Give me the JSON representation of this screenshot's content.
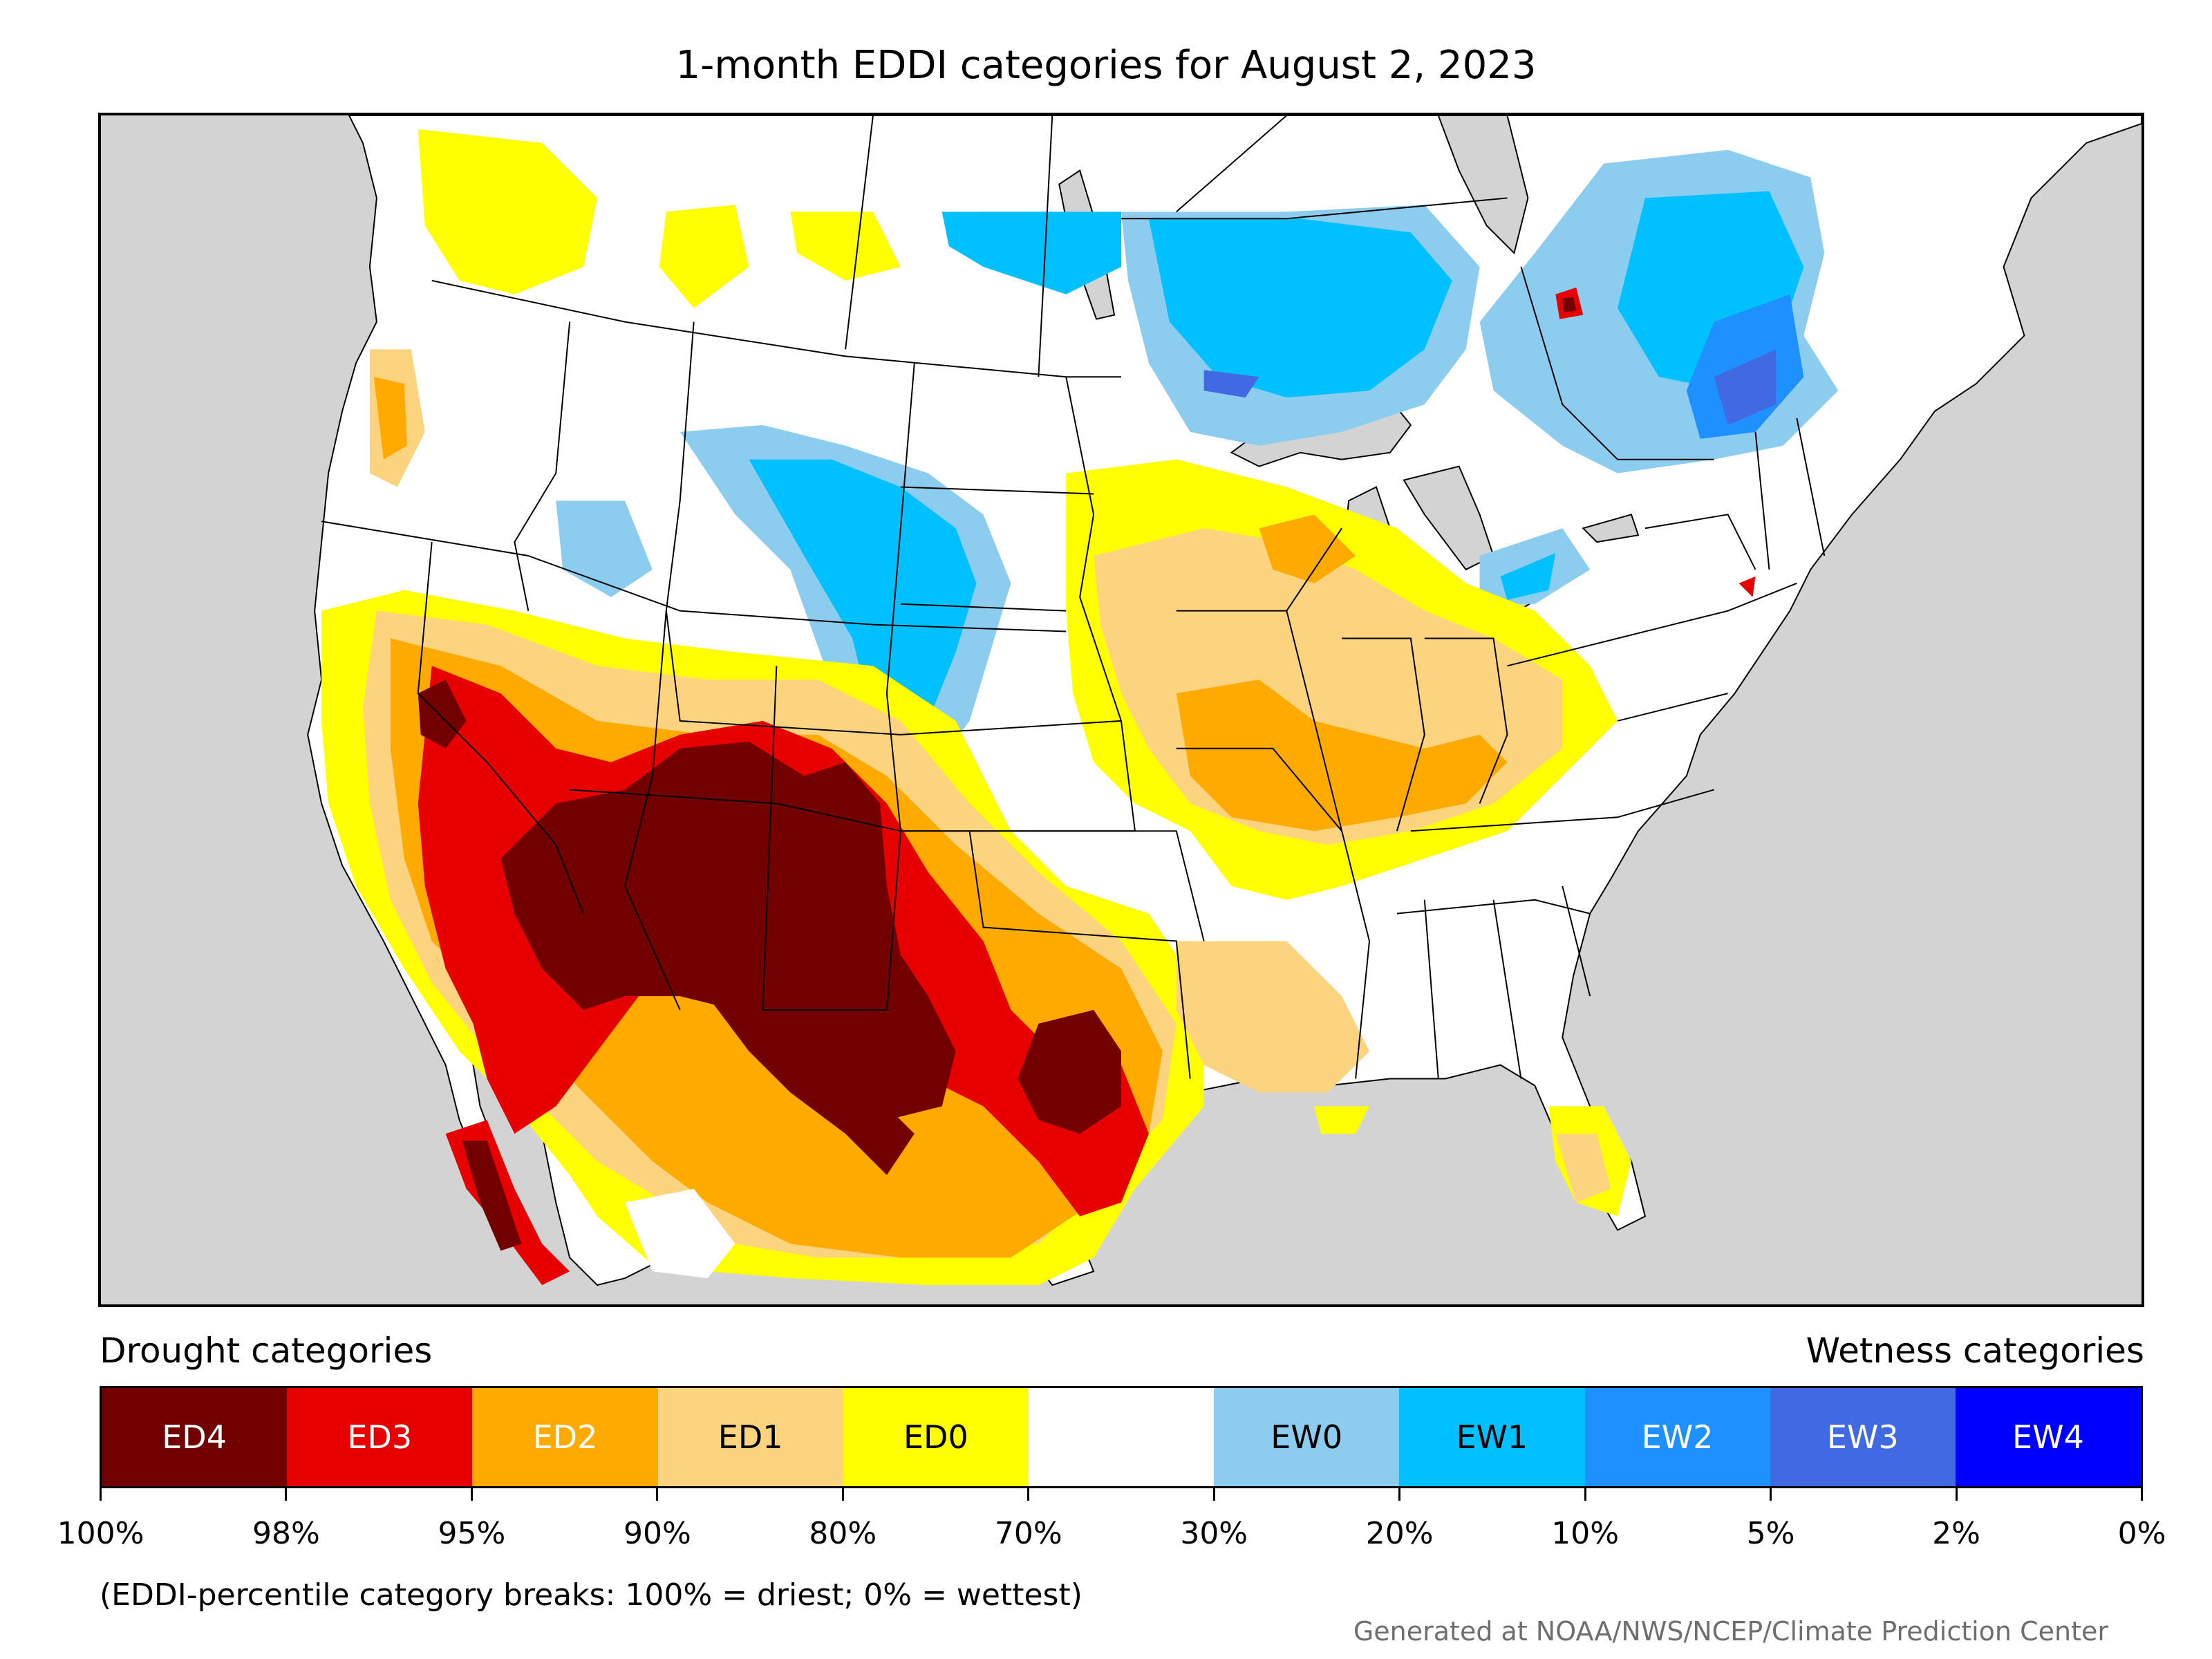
{
  "title": "1-month EDDI categories for August 2, 2023",
  "legend": {
    "left_heading": "Drought categories",
    "right_heading": "Wetness categories",
    "categories": [
      {
        "label": "ED4",
        "color": "#730000",
        "text_color": "#ffffff"
      },
      {
        "label": "ED3",
        "color": "#e60000",
        "text_color": "#ffffff"
      },
      {
        "label": "ED2",
        "color": "#ffaa00",
        "text_color": "#ffffff"
      },
      {
        "label": "ED1",
        "color": "#fcd37f",
        "text_color": "#000000"
      },
      {
        "label": "ED0",
        "color": "#ffff00",
        "text_color": "#000000"
      },
      {
        "label": "",
        "color": "#ffffff",
        "text_color": "#000000"
      },
      {
        "label": "EW0",
        "color": "#8ccdef",
        "text_color": "#000000"
      },
      {
        "label": "EW1",
        "color": "#00c0ff",
        "text_color": "#000000"
      },
      {
        "label": "EW2",
        "color": "#1e90ff",
        "text_color": "#ffffff"
      },
      {
        "label": "EW3",
        "color": "#4169e1",
        "text_color": "#ffffff"
      },
      {
        "label": "EW4",
        "color": "#0000ff",
        "text_color": "#ffffff"
      }
    ],
    "tick_labels": [
      "100%",
      "98%",
      "95%",
      "90%",
      "80%",
      "70%",
      "30%",
      "20%",
      "10%",
      "5%",
      "2%",
      "0%"
    ]
  },
  "note": "(EDDI-percentile category breaks: 100% = driest; 0% = wettest)",
  "credit": "Generated at NOAA/NWS/NCEP/Climate Prediction Center"
}
